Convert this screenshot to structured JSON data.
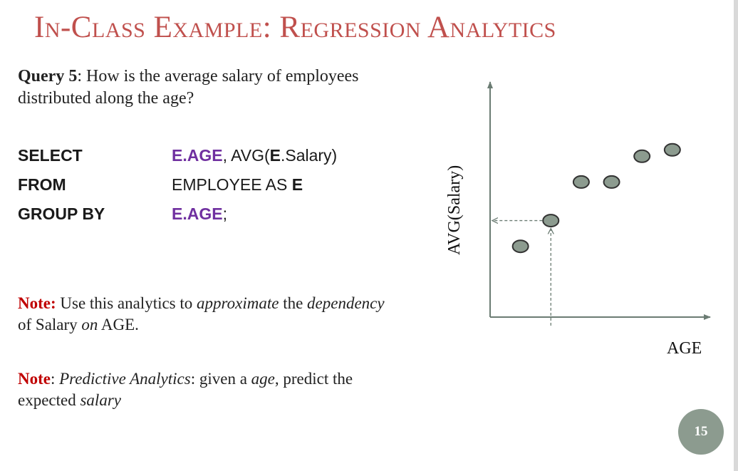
{
  "slide": {
    "title": "In-Class Example: Regression Analytics",
    "page_number": "15"
  },
  "query": {
    "label": "Query 5",
    "text": ": How is the average salary of employees distributed along the age?"
  },
  "sql": {
    "select_kw": "SELECT",
    "select_alias": "E.AGE",
    "select_sep": ", AVG(",
    "select_alias2": "E",
    "select_rest": ".Salary)",
    "from_kw": "FROM",
    "from_table": "EMPLOYEE AS ",
    "from_alias": "E",
    "group_kw": "GROUP BY",
    "group_val": "E.AGE",
    "group_end": ";"
  },
  "note1": {
    "label": "Note:",
    "t1": " Use this analytics to ",
    "i1": "approximate",
    "t2": " the ",
    "i2": "dependency",
    "t3": " of Salary ",
    "i3": "on",
    "t4": " AGE."
  },
  "note2": {
    "label": "Note",
    "t1": ": ",
    "i1": "Predictive Analytics",
    "t2": ": given a ",
    "i2": "age",
    "t3": ", predict the expected ",
    "i3": "salary"
  },
  "chart_data": {
    "type": "scatter",
    "xlabel": "AGE",
    "ylabel": "AVG(Salary)",
    "x": [
      1,
      2,
      3,
      4,
      5,
      6
    ],
    "y": [
      1.1,
      1.5,
      2.1,
      2.1,
      2.5,
      2.6
    ],
    "xlim": [
      0,
      7.2
    ],
    "ylim": [
      0,
      3.6
    ],
    "highlight_index": 1,
    "point_fill": "#8c9b8f",
    "axis_color": "#6b7c73"
  }
}
